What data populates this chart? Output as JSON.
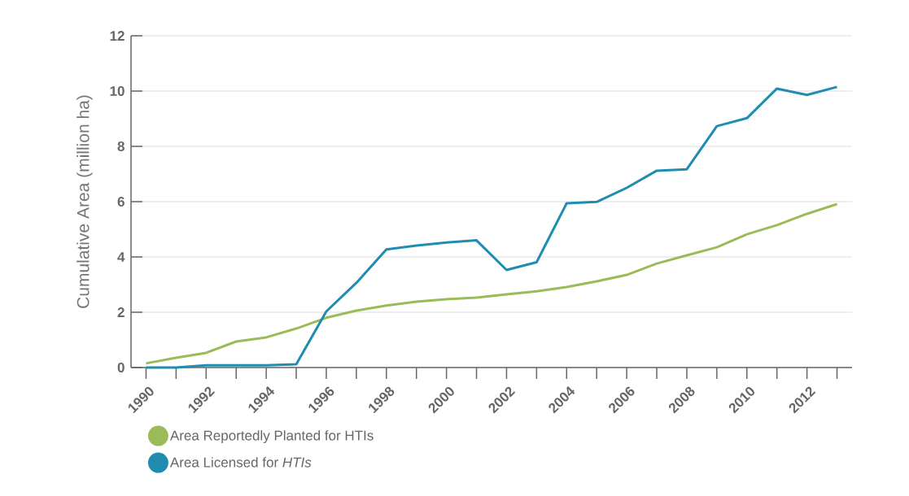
{
  "chart_data": {
    "type": "line",
    "ylabel": "Cumulative Area (million ha)",
    "x": [
      1990,
      1991,
      1992,
      1993,
      1994,
      1995,
      1996,
      1997,
      1998,
      1999,
      2000,
      2001,
      2002,
      2003,
      2004,
      2005,
      2006,
      2007,
      2008,
      2009,
      2010,
      2011,
      2012,
      2013
    ],
    "series": [
      {
        "name": "Area Reportedly Planted for HTIs",
        "color": "#9bbb59",
        "values": [
          0.15,
          0.35,
          0.53,
          0.94,
          1.09,
          1.41,
          1.8,
          2.06,
          2.24,
          2.38,
          2.47,
          2.53,
          2.65,
          2.76,
          2.91,
          3.12,
          3.35,
          3.76,
          4.06,
          4.35,
          4.82,
          5.15,
          5.56,
          5.91
        ]
      },
      {
        "name": "Area Licensed for *HTIs*",
        "color": "#1f8cb0",
        "values": [
          0,
          0,
          0.08,
          0.08,
          0.08,
          0.12,
          2.03,
          3.06,
          4.27,
          4.41,
          4.52,
          4.6,
          3.53,
          3.81,
          5.94,
          5.99,
          6.5,
          7.12,
          7.17,
          8.73,
          9.02,
          10.09,
          9.86,
          10.15
        ]
      }
    ],
    "xlim": [
      1989.5,
      2013.5
    ],
    "xticks": [
      {
        "value": 1990,
        "label": "1990"
      },
      {
        "value": 1991,
        "label": null
      },
      {
        "value": 1992,
        "label": "1992"
      },
      {
        "value": 1993,
        "label": null
      },
      {
        "value": 1994,
        "label": "1994"
      },
      {
        "value": 1995,
        "label": null
      },
      {
        "value": 1996,
        "label": "1996"
      },
      {
        "value": 1997,
        "label": null
      },
      {
        "value": 1998,
        "label": "1998"
      },
      {
        "value": 1999,
        "label": null
      },
      {
        "value": 2000,
        "label": "2000"
      },
      {
        "value": 2001,
        "label": null
      },
      {
        "value": 2002,
        "label": "2002"
      },
      {
        "value": 2003,
        "label": null
      },
      {
        "value": 2004,
        "label": "2004"
      },
      {
        "value": 2005,
        "label": null
      },
      {
        "value": 2006,
        "label": "2006"
      },
      {
        "value": 2007,
        "label": null
      },
      {
        "value": 2008,
        "label": "2008"
      },
      {
        "value": 2009,
        "label": null
      },
      {
        "value": 2010,
        "label": "2010"
      },
      {
        "value": 2011,
        "label": null
      },
      {
        "value": 2012,
        "label": "2012"
      },
      {
        "value": 2013,
        "label": null
      }
    ],
    "ylim": [
      0,
      12
    ],
    "yticks": [
      0,
      2,
      4,
      6,
      8,
      10,
      12
    ],
    "grid": "y",
    "legend": "bottom left",
    "marker": "none",
    "line_style": "solid"
  }
}
